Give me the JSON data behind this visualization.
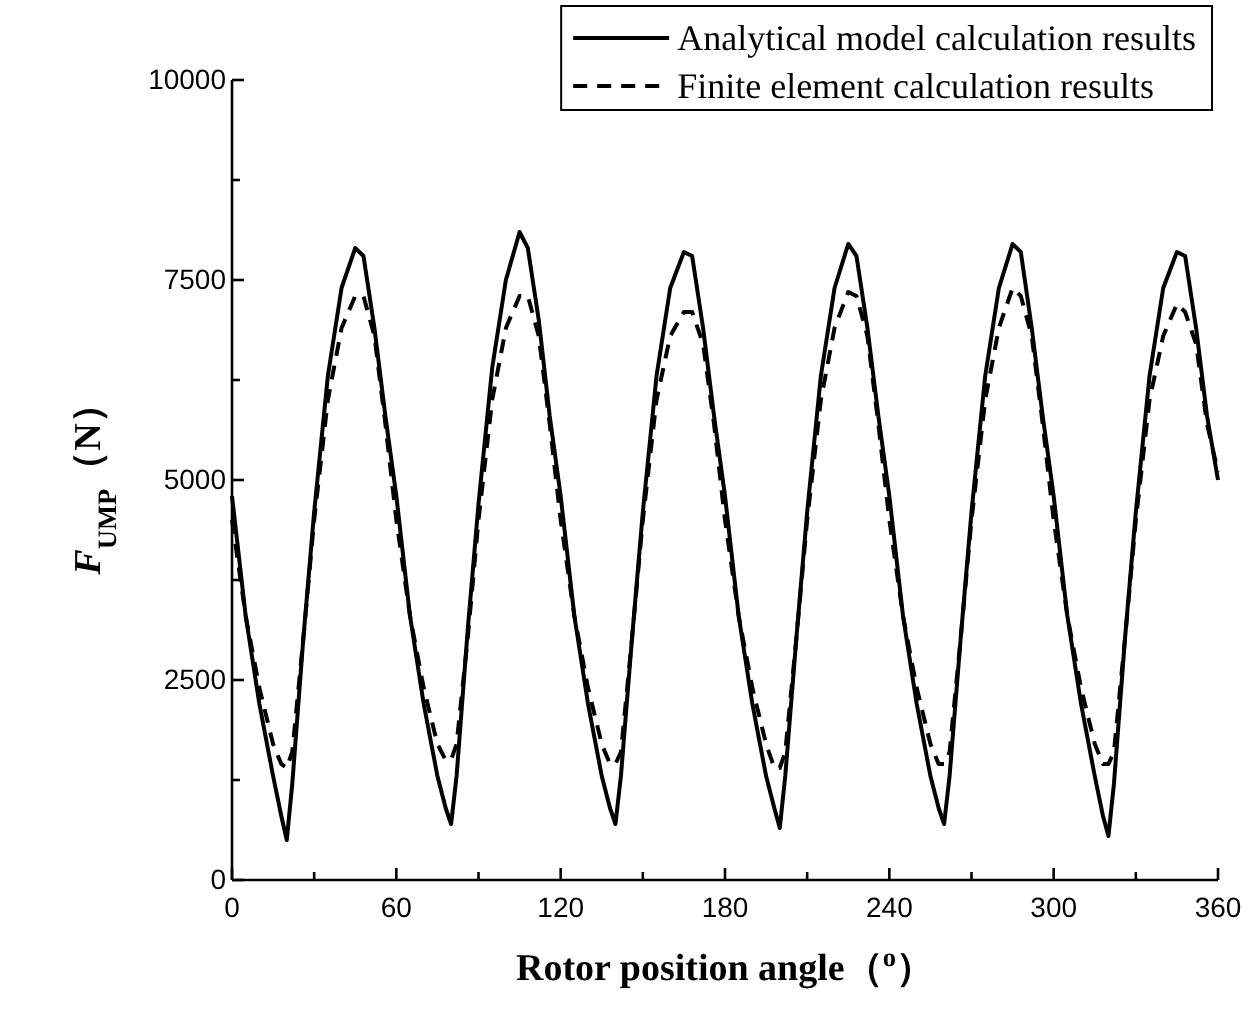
{
  "chart_data": {
    "type": "line",
    "xlabel": "Rotor position angle（$^{o}$）",
    "ylabel": "F$_{UMP}$（N）",
    "x": [
      0,
      5,
      10,
      15,
      18,
      20,
      22,
      26,
      30,
      35,
      40,
      45,
      48,
      52,
      56,
      60,
      65,
      70,
      75,
      78,
      80,
      82,
      86,
      90,
      95,
      100,
      105,
      108,
      112,
      116,
      120,
      125,
      130,
      135,
      138,
      140,
      142,
      146,
      150,
      155,
      160,
      165,
      168,
      172,
      176,
      180,
      185,
      190,
      195,
      198,
      200,
      202,
      206,
      210,
      215,
      220,
      225,
      228,
      232,
      236,
      240,
      245,
      250,
      255,
      258,
      260,
      262,
      266,
      270,
      275,
      280,
      285,
      288,
      292,
      296,
      300,
      305,
      310,
      315,
      318,
      320,
      322,
      326,
      330,
      335,
      340,
      345,
      348,
      352,
      356,
      360
    ],
    "series": [
      {
        "name": "Analytical model calculation results",
        "color": "#000000",
        "line_style": "solid",
        "values": [
          4800,
          3300,
          2200,
          1300,
          800,
          500,
          1200,
          3000,
          4600,
          6300,
          7400,
          7900,
          7800,
          6900,
          5800,
          4800,
          3300,
          2200,
          1300,
          900,
          700,
          1300,
          3100,
          4700,
          6400,
          7500,
          8100,
          7900,
          7000,
          5800,
          4800,
          3300,
          2200,
          1300,
          900,
          700,
          1300,
          3000,
          4600,
          6300,
          7400,
          7850,
          7800,
          6900,
          5800,
          4800,
          3300,
          2200,
          1300,
          900,
          650,
          1300,
          3000,
          4600,
          6300,
          7400,
          7950,
          7800,
          6900,
          5800,
          4800,
          3300,
          2200,
          1300,
          900,
          700,
          1300,
          3000,
          4600,
          6300,
          7400,
          7950,
          7850,
          6900,
          5800,
          4800,
          3300,
          2200,
          1300,
          800,
          550,
          1200,
          3000,
          4600,
          6300,
          7400,
          7850,
          7800,
          6900,
          5800,
          5000
        ]
      },
      {
        "name": "Finite element calculation results",
        "color": "#000000",
        "line_style": "dashed",
        "values": [
          4500,
          3300,
          2400,
          1700,
          1450,
          1400,
          1600,
          3000,
          4500,
          6000,
          6900,
          7300,
          7300,
          6800,
          5700,
          4500,
          3300,
          2400,
          1700,
          1500,
          1500,
          1700,
          3000,
          4500,
          6000,
          6900,
          7300,
          7300,
          6800,
          5700,
          4500,
          3300,
          2400,
          1700,
          1450,
          1450,
          1600,
          3000,
          4500,
          6000,
          6800,
          7100,
          7100,
          6700,
          5700,
          4500,
          3300,
          2400,
          1700,
          1400,
          1400,
          1600,
          3000,
          4500,
          6000,
          6900,
          7350,
          7300,
          6800,
          5700,
          4500,
          3300,
          2400,
          1700,
          1450,
          1450,
          1600,
          3000,
          4500,
          6000,
          6900,
          7400,
          7300,
          6800,
          5700,
          4500,
          3300,
          2400,
          1700,
          1450,
          1450,
          1600,
          3000,
          4500,
          6000,
          6800,
          7200,
          7100,
          6700,
          5700,
          5100
        ]
      }
    ],
    "xlim": [
      0,
      360
    ],
    "xticks": [
      0,
      {
        "value": 30,
        "label": null
      },
      60,
      {
        "value": 90,
        "label": null
      },
      120,
      {
        "value": 150,
        "label": null
      },
      180,
      {
        "value": 210,
        "label": null
      },
      240,
      {
        "value": 270,
        "label": null
      },
      300,
      {
        "value": 330,
        "label": null
      },
      360
    ],
    "ylim": [
      0,
      10000
    ],
    "yticks": [
      0,
      {
        "value": 1250,
        "label": null
      },
      2500,
      {
        "value": 3750,
        "label": null
      },
      5000,
      {
        "value": 6250,
        "label": null
      },
      7500,
      {
        "value": 8750,
        "label": null
      },
      10000
    ],
    "grid": false,
    "legend": "top right",
    "marker": "none"
  }
}
